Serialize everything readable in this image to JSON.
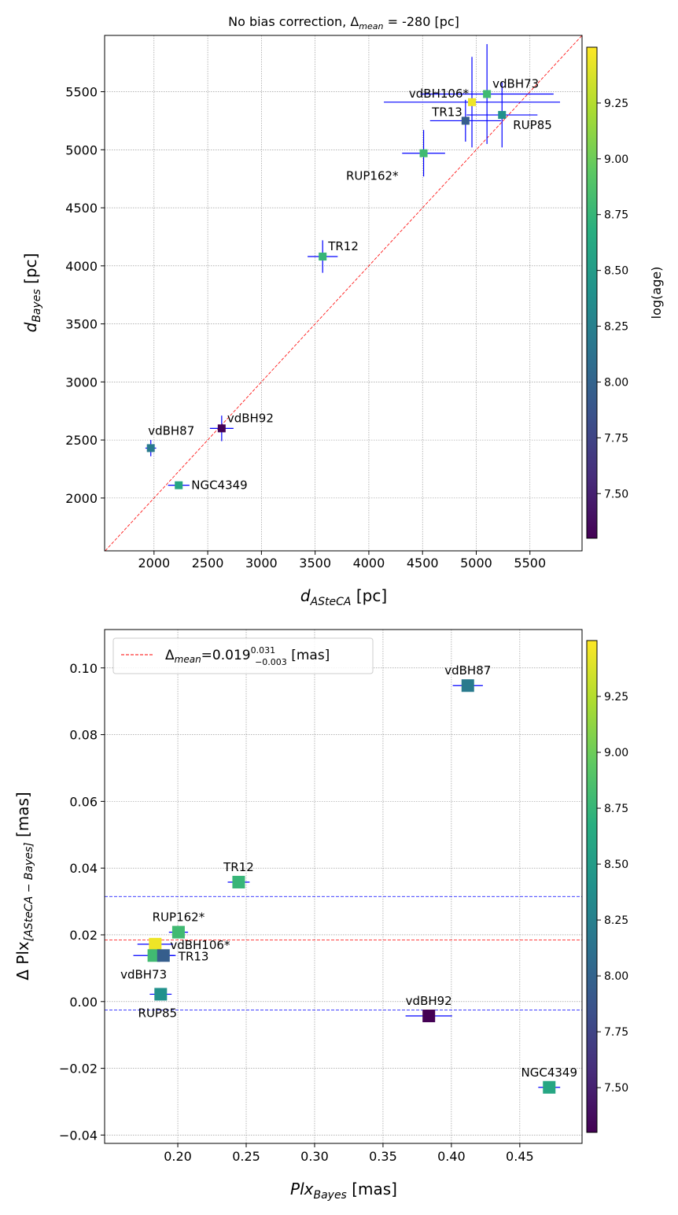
{
  "chart_data": [
    {
      "type": "scatter",
      "title_prefix": "No bias correction, Δ",
      "title_sub": "mean",
      "title_suffix": " = -280 [pc]",
      "xlabel_main": "d",
      "xlabel_sub": "ASteCA",
      "xlabel_unit": " [pc]",
      "ylabel_main": "d",
      "ylabel_sub": "Bayes",
      "ylabel_unit": " [pc]",
      "xlim": [
        1540,
        5985
      ],
      "ylim": [
        1545,
        5985
      ],
      "xticks": [
        2000,
        2500,
        3000,
        3500,
        4000,
        4500,
        5000,
        5500
      ],
      "yticks": [
        2000,
        2500,
        3000,
        3500,
        4000,
        4500,
        5000,
        5500
      ],
      "grid": true,
      "identity_line": {
        "color": "#ff0000",
        "style": "dashed"
      },
      "colorbar": {
        "label": "log(age)",
        "range": [
          7.3,
          9.5
        ],
        "ticks": [
          "7.50",
          "7.75",
          "8.00",
          "8.25",
          "8.50",
          "8.75",
          "9.00",
          "9.25"
        ]
      },
      "points": [
        {
          "name": "vdBH73",
          "x": 5100,
          "y": 5480,
          "x_err": 620,
          "y_err": 430,
          "log_age": 8.8,
          "label_pos": "upper-right"
        },
        {
          "name": "vdBH106*",
          "x": 4960,
          "y": 5410,
          "x_err": 820,
          "y_err": 390,
          "log_age": 9.45,
          "label_pos": "upper-left"
        },
        {
          "name": "TR13",
          "x": 4900,
          "y": 5250,
          "x_err": 330,
          "y_err": 180,
          "log_age": 7.95,
          "label_pos": "upper-left"
        },
        {
          "name": "RUP85",
          "x": 5240,
          "y": 5300,
          "x_err": 330,
          "y_err": 280,
          "log_age": 8.4,
          "label_pos": "lower-right"
        },
        {
          "name": "RUP162*",
          "x": 4510,
          "y": 4970,
          "x_err": 200,
          "y_err": 200,
          "log_age": 8.8,
          "label_pos": "lower-left"
        },
        {
          "name": "TR12",
          "x": 3570,
          "y": 4080,
          "x_err": 140,
          "y_err": 140,
          "log_age": 8.75,
          "label_pos": "upper-right"
        },
        {
          "name": "vdBH92",
          "x": 2630,
          "y": 2600,
          "x_err": 110,
          "y_err": 110,
          "log_age": 7.3,
          "label_pos": "upper-right"
        },
        {
          "name": "vdBH87",
          "x": 1970,
          "y": 2430,
          "x_err": 50,
          "y_err": 70,
          "log_age": 8.2,
          "label_pos": "upper-center"
        },
        {
          "name": "NGC4349",
          "x": 2230,
          "y": 2110,
          "x_err": 100,
          "y_err": 25,
          "log_age": 8.6,
          "label_pos": "right"
        }
      ]
    },
    {
      "type": "scatter",
      "xlabel_main": "Plx",
      "xlabel_sub": "Bayes",
      "xlabel_unit": " [mas]",
      "ylabel_main": "Δ Plx",
      "ylabel_sub": "[ASteCA − Bayes]",
      "ylabel_unit": " [mas]",
      "xlim": [
        0.1465,
        0.4955
      ],
      "ylim": [
        -0.0425,
        0.1115
      ],
      "xticks": [
        "0.20",
        "0.25",
        "0.30",
        "0.35",
        "0.40",
        "0.45"
      ],
      "yticks": [
        "0.10",
        "0.08",
        "0.06",
        "0.04",
        "0.02",
        "0.00",
        "−0.02",
        "−0.04"
      ],
      "grid": true,
      "legend": {
        "position": "upper-left",
        "label_main": "Δ",
        "label_sub": "mean",
        "label_value": "=0.019",
        "label_sup": "0.031",
        "label_sub2": "−0.003",
        "label_unit": " [mas]"
      },
      "mean_line": {
        "value": 0.0185,
        "color": "#ff0000"
      },
      "bounds_lines": {
        "values": [
          0.0315,
          -0.0025
        ],
        "color": "#0000ff"
      },
      "colorbar": {
        "range": [
          7.3,
          9.5
        ],
        "ticks": [
          "7.50",
          "7.75",
          "8.00",
          "8.25",
          "8.50",
          "8.75",
          "9.00",
          "9.25"
        ]
      },
      "points": [
        {
          "name": "vdBH87",
          "x": 0.412,
          "y": 0.0947,
          "x_err": 0.011,
          "log_age": 8.2,
          "label_pos": "above"
        },
        {
          "name": "TR12",
          "x": 0.2445,
          "y": 0.0358,
          "x_err": 0.008,
          "log_age": 8.75,
          "label_pos": "above"
        },
        {
          "name": "RUP162*",
          "x": 0.2005,
          "y": 0.0208,
          "x_err": 0.007,
          "log_age": 8.8,
          "label_pos": "above"
        },
        {
          "name": "vdBH106*",
          "x": 0.1835,
          "y": 0.0172,
          "x_err": 0.013,
          "log_age": 9.45,
          "label_pos": "right"
        },
        {
          "name": "vdBH73",
          "x": 0.1825,
          "y": 0.0138,
          "x_err": 0.015,
          "log_age": 8.8,
          "label_pos": "below-left"
        },
        {
          "name": "TR13",
          "x": 0.1895,
          "y": 0.0138,
          "x_err": 0.009,
          "log_age": 7.95,
          "label_pos": "right"
        },
        {
          "name": "RUP85",
          "x": 0.1875,
          "y": 0.0022,
          "x_err": 0.008,
          "log_age": 8.4,
          "label_pos": "below"
        },
        {
          "name": "vdBH92",
          "x": 0.3835,
          "y": -0.0043,
          "x_err": 0.017,
          "log_age": 7.3,
          "label_pos": "above"
        },
        {
          "name": "NGC4349",
          "x": 0.4715,
          "y": -0.0257,
          "x_err": 0.008,
          "log_age": 8.6,
          "label_pos": "above"
        }
      ]
    }
  ]
}
